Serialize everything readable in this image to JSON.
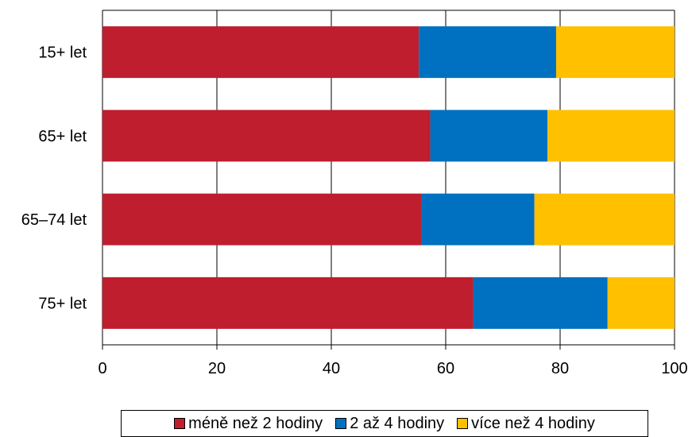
{
  "chart_data": {
    "type": "bar",
    "orientation": "horizontal",
    "stacked": true,
    "categories": [
      "15+ let",
      "65+ let",
      "65–74 let",
      "75+ let"
    ],
    "series": [
      {
        "name": "méně než 2 hodiny",
        "color": "#be1e2d",
        "values": [
          55.3,
          57.3,
          55.7,
          64.8
        ]
      },
      {
        "name": "2 až 4 hodiny",
        "color": "#0070c0",
        "values": [
          24.0,
          20.5,
          19.8,
          23.5
        ]
      },
      {
        "name": "více než 4 hodiny",
        "color": "#ffc000",
        "values": [
          20.7,
          22.2,
          24.5,
          11.7
        ]
      }
    ],
    "xlim": [
      0,
      100
    ],
    "xticks": [
      0,
      20,
      40,
      60,
      80,
      100
    ],
    "grid": true,
    "legend_position": "bottom",
    "title": "",
    "xlabel": "",
    "ylabel": ""
  }
}
